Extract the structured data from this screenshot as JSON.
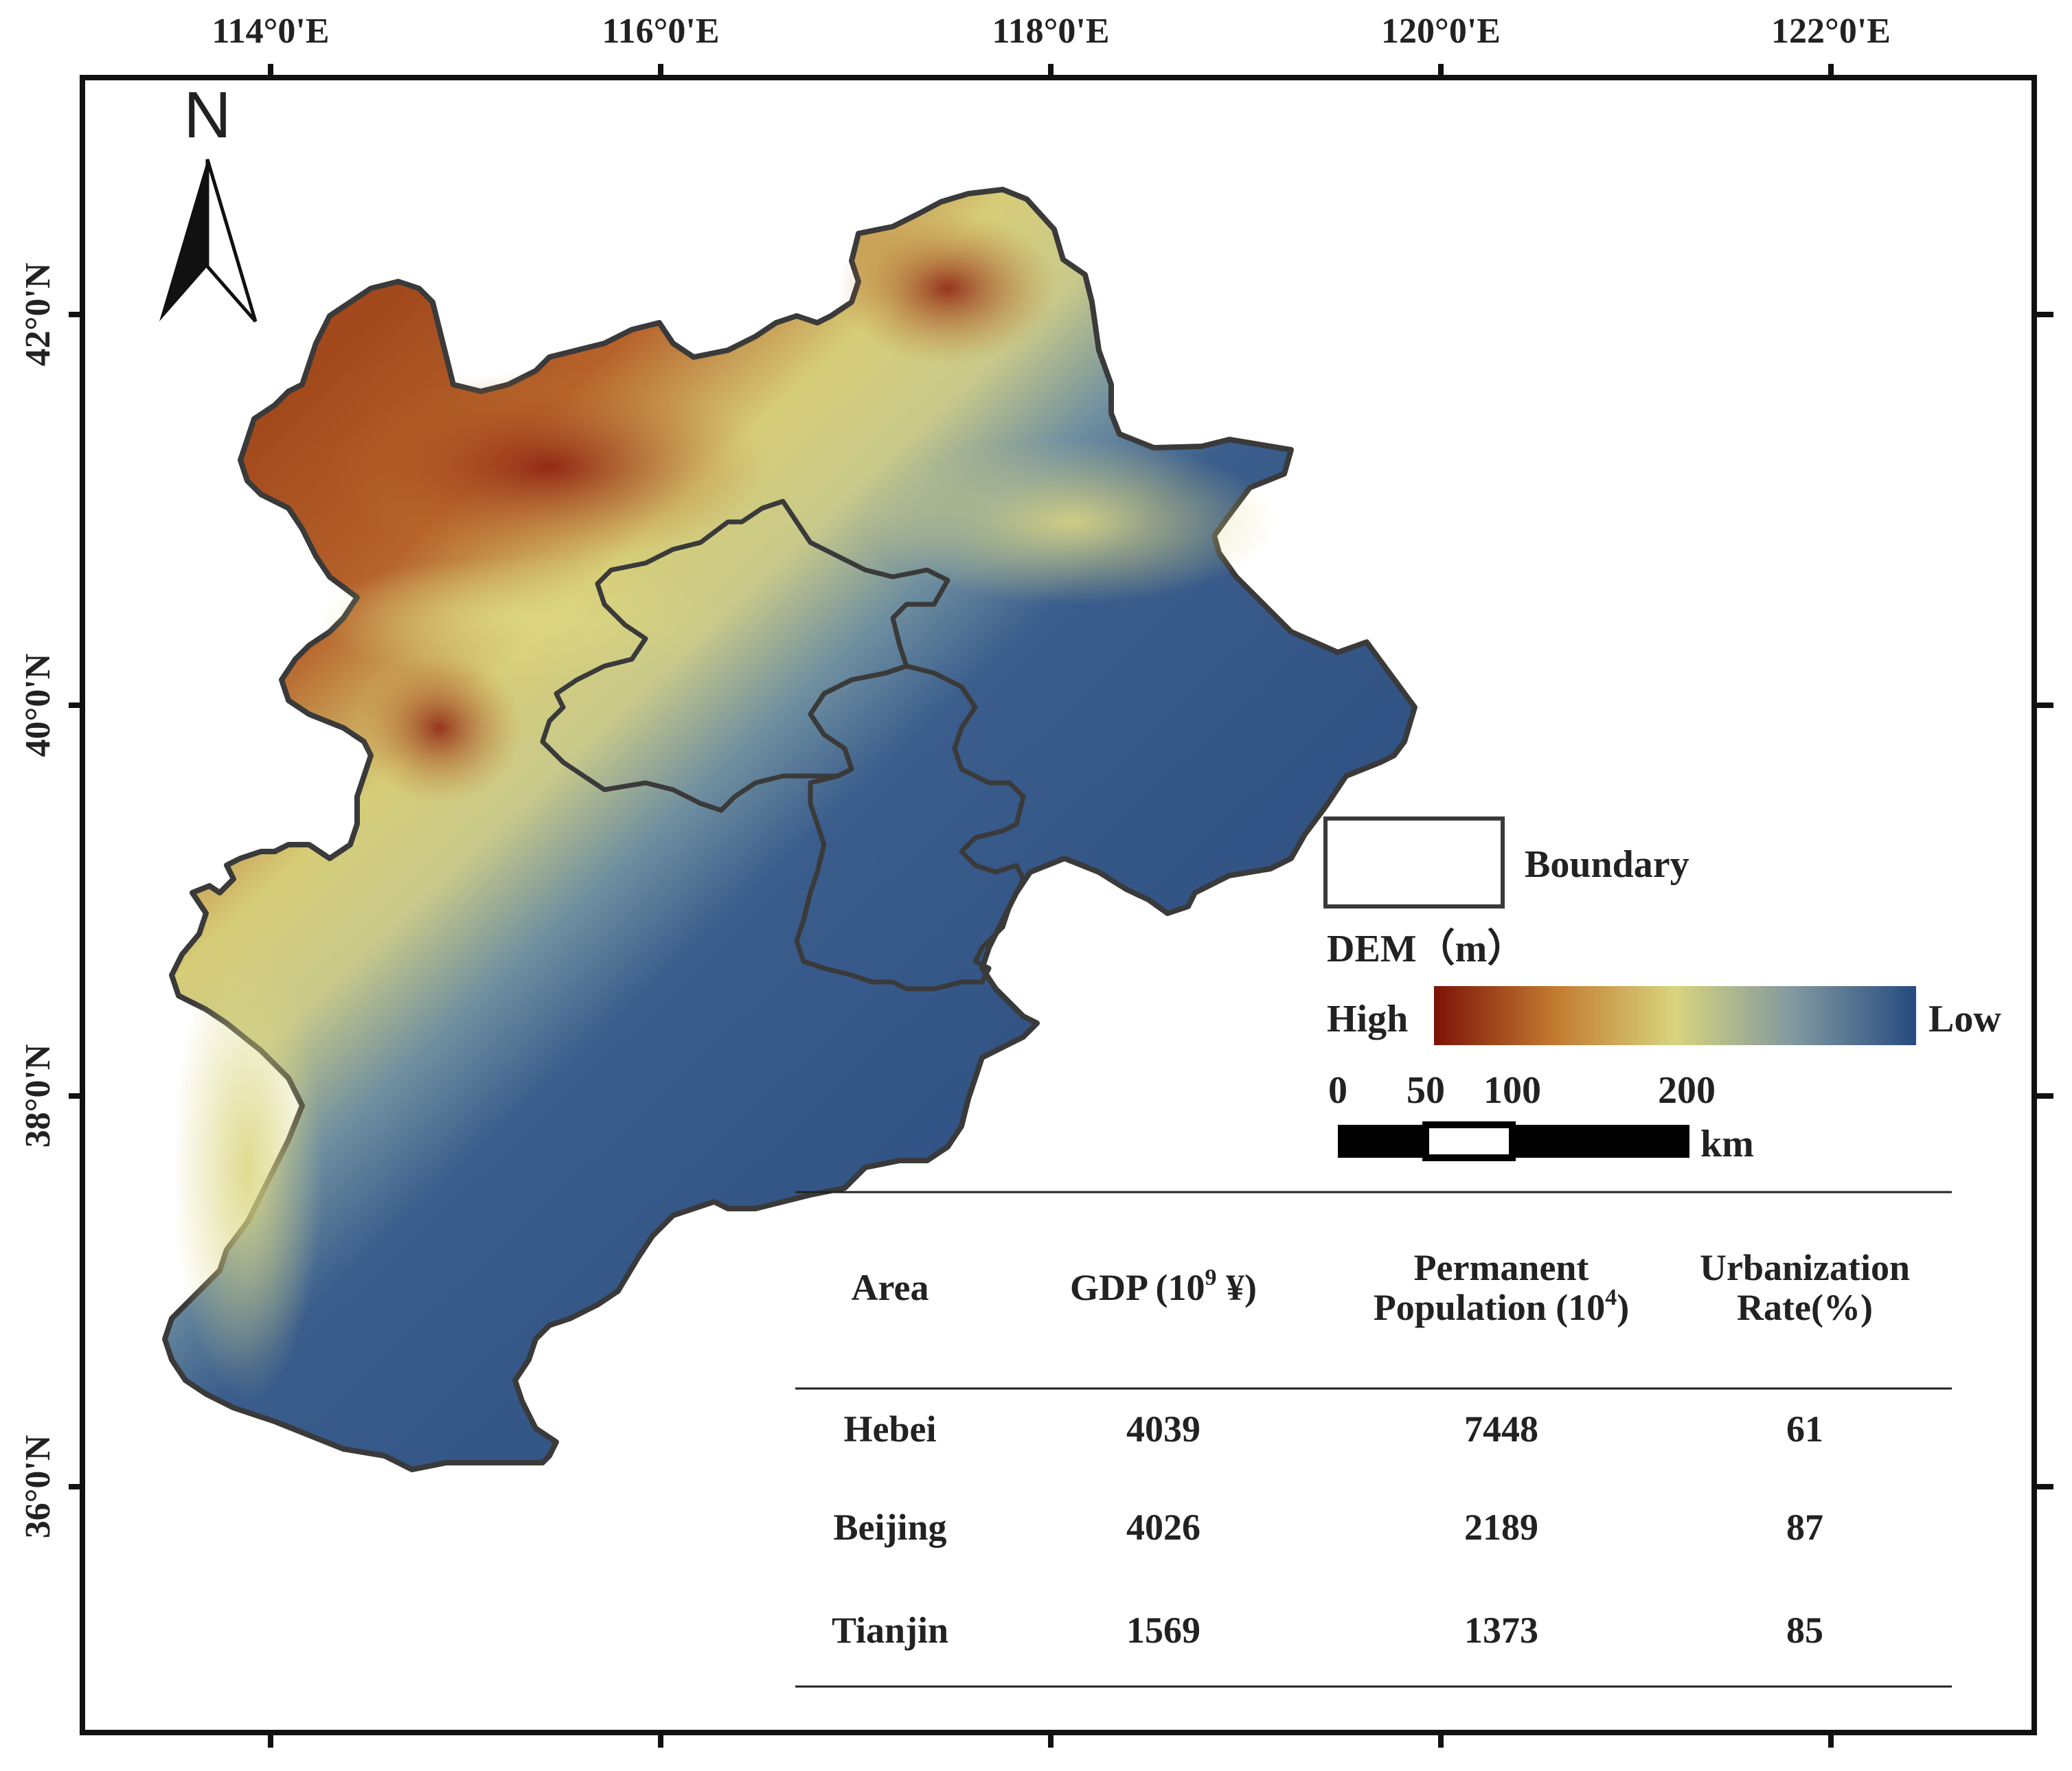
{
  "map": {
    "longitude_labels": [
      "114°0'E",
      "116°0'E",
      "118°0'E",
      "120°0'E",
      "122°0'E"
    ],
    "latitude_labels": [
      "42°0'N",
      "40°0'N",
      "38°0'N",
      "36°0'N"
    ],
    "north_arrow": {
      "label": "N",
      "icon": "north-arrow-icon"
    },
    "colors": {
      "dem_high": "#8b1a0f",
      "dem_mid_high": "#c9832e",
      "dem_mid": "#d6d27d",
      "dem_mid_low": "#8aa098",
      "dem_low": "#2f5183",
      "boundary": "#3a3a3a"
    }
  },
  "legend": {
    "boundary_label": "Boundary",
    "dem_title": "DEM（m）",
    "high_label": "High",
    "low_label": "Low",
    "scale_ticks": [
      "0",
      "50",
      "100",
      "200"
    ],
    "scale_unit": "km"
  },
  "table": {
    "headers": {
      "area": "Area",
      "gdp_main": "GDP (10",
      "gdp_sup": "9",
      "gdp_tail": " ¥)",
      "pop_line1": "Permanent",
      "pop_line2_main": "Population (10",
      "pop_line2_sup": "4",
      "pop_line2_tail": ")",
      "urb_line1": "Urbanization",
      "urb_line2": "Rate(%)"
    },
    "rows": [
      {
        "area": "Hebei",
        "gdp": "4039",
        "population": "7448",
        "urbanization": "61"
      },
      {
        "area": "Beijing",
        "gdp": "4026",
        "population": "2189",
        "urbanization": "87"
      },
      {
        "area": "Tianjin",
        "gdp": "1569",
        "population": "1373",
        "urbanization": "85"
      }
    ]
  }
}
